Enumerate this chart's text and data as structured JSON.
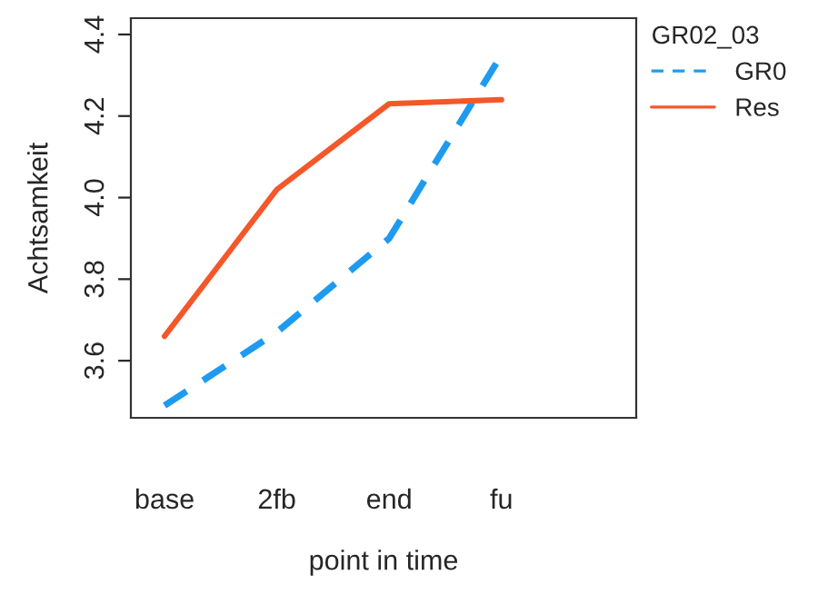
{
  "chart_data": {
    "type": "line",
    "xlabel": "point in time",
    "ylabel": "Achtsamkeit",
    "legend_title": "GR02_03",
    "categories": [
      "base",
      "2fb",
      "end",
      "fu"
    ],
    "series": [
      {
        "name": "GR0",
        "color": "#1e9bf0",
        "line_style": "dashed",
        "values": [
          3.49,
          3.67,
          3.9,
          4.35
        ]
      },
      {
        "name": "Res",
        "color": "#f4572a",
        "line_style": "solid",
        "values": [
          3.66,
          4.02,
          4.23,
          4.24
        ]
      }
    ],
    "ylim": [
      3.46,
      4.44
    ],
    "yticks": [
      {
        "value": 3.6,
        "label": "3.6"
      },
      {
        "value": 3.8,
        "label": "3.8"
      },
      {
        "value": 4.0,
        "label": "4.0"
      },
      {
        "value": 4.2,
        "label": "4.2"
      },
      {
        "value": 4.4,
        "label": "4.4"
      }
    ],
    "grid": false,
    "legend": "right",
    "marker": "none"
  }
}
